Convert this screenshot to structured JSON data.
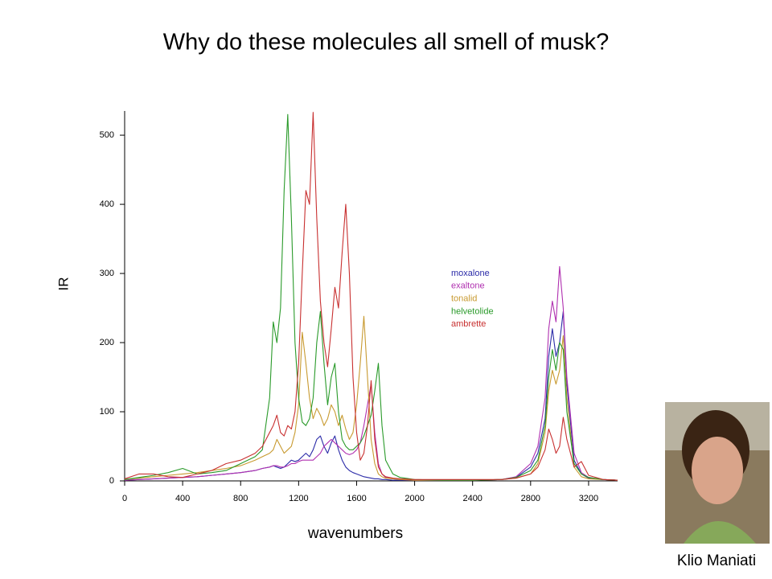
{
  "chart_data": {
    "type": "line",
    "title": "Why do these molecules all smell of musk?",
    "x_label": "wavenumbers",
    "y_label": "IR",
    "x": [
      0,
      100,
      200,
      300,
      400,
      500,
      600,
      700,
      800,
      900,
      950,
      1000,
      1025,
      1050,
      1075,
      1100,
      1125,
      1150,
      1175,
      1200,
      1225,
      1250,
      1275,
      1300,
      1325,
      1350,
      1375,
      1400,
      1425,
      1450,
      1475,
      1500,
      1525,
      1550,
      1575,
      1600,
      1625,
      1650,
      1675,
      1700,
      1725,
      1750,
      1775,
      1800,
      1850,
      1900,
      2000,
      2200,
      2400,
      2600,
      2700,
      2800,
      2850,
      2900,
      2925,
      2950,
      2975,
      3000,
      3025,
      3050,
      3100,
      3150,
      3200,
      3300,
      3400
    ],
    "series": [
      {
        "name": "moxalone",
        "color": "#2b2ba8",
        "values": [
          1,
          2,
          3,
          4,
          5,
          6,
          8,
          10,
          12,
          15,
          18,
          20,
          22,
          20,
          18,
          20,
          25,
          30,
          28,
          30,
          35,
          40,
          35,
          45,
          60,
          65,
          50,
          40,
          55,
          65,
          45,
          30,
          20,
          15,
          12,
          10,
          8,
          6,
          5,
          4,
          3,
          3,
          2,
          2,
          1,
          1,
          1,
          1,
          1,
          2,
          5,
          20,
          40,
          90,
          180,
          220,
          180,
          200,
          245,
          140,
          30,
          10,
          4,
          2,
          1
        ]
      },
      {
        "name": "exaltone",
        "color": "#b030b0",
        "values": [
          1,
          2,
          3,
          4,
          5,
          6,
          8,
          10,
          12,
          15,
          18,
          20,
          22,
          22,
          20,
          20,
          22,
          25,
          25,
          28,
          30,
          30,
          30,
          30,
          35,
          40,
          50,
          55,
          60,
          55,
          50,
          45,
          40,
          38,
          40,
          45,
          55,
          80,
          110,
          140,
          70,
          25,
          10,
          5,
          3,
          2,
          1,
          1,
          1,
          2,
          6,
          25,
          50,
          120,
          220,
          260,
          230,
          310,
          250,
          150,
          40,
          12,
          5,
          2,
          1
        ]
      },
      {
        "name": "tonalid",
        "color": "#c89a30",
        "values": [
          2,
          4,
          6,
          8,
          10,
          12,
          15,
          18,
          22,
          30,
          35,
          40,
          45,
          60,
          50,
          40,
          45,
          50,
          70,
          110,
          215,
          170,
          120,
          90,
          105,
          95,
          80,
          90,
          110,
          100,
          80,
          95,
          75,
          60,
          70,
          110,
          170,
          238,
          150,
          60,
          25,
          10,
          6,
          4,
          3,
          2,
          1,
          1,
          1,
          2,
          4,
          10,
          25,
          70,
          130,
          160,
          140,
          160,
          210,
          120,
          20,
          6,
          3,
          2,
          1
        ]
      },
      {
        "name": "helvetolide",
        "color": "#2a9a2a",
        "values": [
          2,
          5,
          8,
          12,
          18,
          10,
          12,
          15,
          25,
          35,
          45,
          120,
          230,
          200,
          250,
          420,
          530,
          380,
          200,
          120,
          85,
          80,
          90,
          120,
          200,
          245,
          170,
          110,
          150,
          170,
          100,
          60,
          50,
          45,
          45,
          50,
          55,
          65,
          80,
          95,
          130,
          170,
          80,
          30,
          10,
          5,
          2,
          1,
          1,
          2,
          5,
          15,
          30,
          80,
          150,
          190,
          160,
          200,
          190,
          100,
          25,
          10,
          5,
          2,
          1
        ]
      },
      {
        "name": "ambrette",
        "color": "#c83030",
        "values": [
          3,
          10,
          10,
          6,
          5,
          10,
          15,
          25,
          30,
          40,
          50,
          70,
          80,
          95,
          70,
          65,
          80,
          75,
          100,
          170,
          300,
          420,
          400,
          533,
          380,
          260,
          200,
          165,
          220,
          280,
          250,
          330,
          400,
          300,
          150,
          70,
          30,
          40,
          80,
          145,
          60,
          20,
          10,
          6,
          4,
          3,
          2,
          2,
          2,
          2,
          4,
          10,
          20,
          45,
          75,
          60,
          40,
          50,
          92,
          60,
          20,
          28,
          8,
          2,
          1
        ]
      }
    ],
    "xlim": [
      0,
      3400
    ],
    "ylim": [
      0,
      535
    ],
    "xticks": [
      0,
      400,
      800,
      1200,
      1600,
      2000,
      2400,
      2800,
      3200
    ],
    "yticks": [
      0,
      100,
      200,
      300,
      400,
      500
    ],
    "grid": false,
    "legend_position": "center"
  },
  "caption": "Klio Maniati"
}
